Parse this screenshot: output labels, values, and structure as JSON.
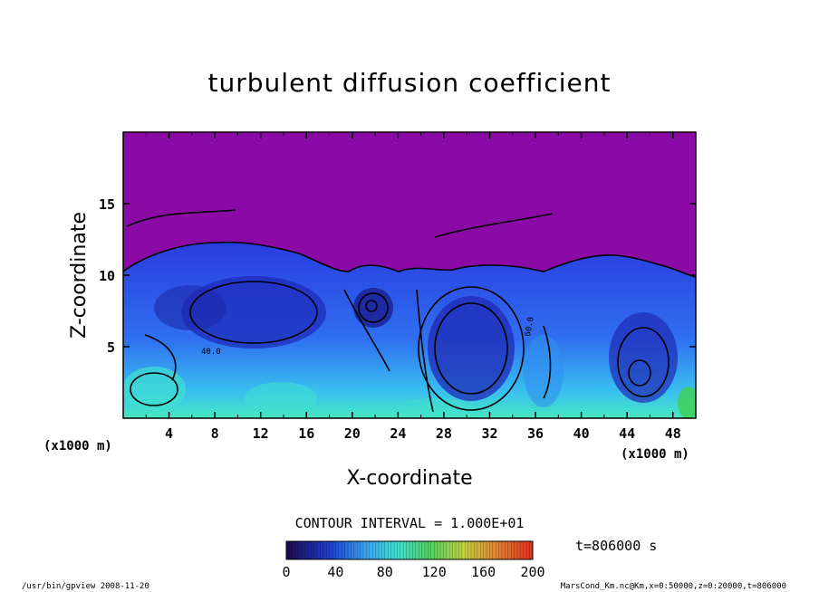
{
  "chart_data": {
    "type": "heatmap",
    "title": "turbulent diffusion coefficient",
    "xlabel": "X-coordinate",
    "ylabel": "Z-coordinate",
    "x_unit": "(x1000 m)",
    "y_unit": "(x1000 m)",
    "xlim": [
      0,
      50
    ],
    "ylim": [
      0,
      20
    ],
    "x_ticks": [
      "4",
      "8",
      "12",
      "16",
      "20",
      "24",
      "28",
      "32",
      "36",
      "40",
      "44",
      "48"
    ],
    "y_ticks": [
      "5",
      "10",
      "15"
    ],
    "contour_interval_label": "CONTOUR INTERVAL = 1.000E+01",
    "colorbar": {
      "range": [
        0,
        200
      ],
      "ticks": [
        "0",
        "40",
        "80",
        "120",
        "160",
        "200"
      ]
    },
    "contour_labels": [
      "40.0",
      "60.0"
    ],
    "top_region_color": "#8b0aa5",
    "time_label": "t=806000 s"
  },
  "footer": {
    "program": "/usr/bin/gpview   2008-11-20",
    "source": "MarsCond_Km.nc@Km,x=0:50000,z=0:20000,t=806000"
  }
}
